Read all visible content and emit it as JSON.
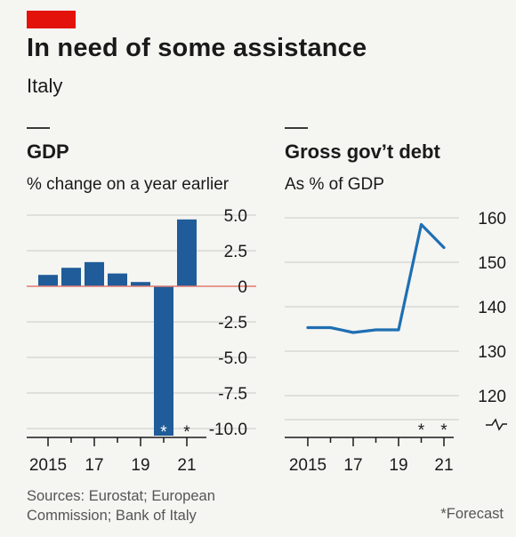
{
  "header": {
    "title": "In need of some assistance",
    "subtitle": "Italy",
    "accent_color": "#e3120b"
  },
  "footer": {
    "sources_line1": "Sources: Eurostat; European",
    "sources_line2": "Commission; Bank of Italy",
    "forecast_note": "*Forecast"
  },
  "chart_data": [
    {
      "type": "bar",
      "title": "GDP",
      "subtitle": "% change on a year earlier",
      "categories": [
        "2015",
        "2016",
        "2017",
        "2018",
        "2019",
        "2020",
        "2021"
      ],
      "values": [
        0.8,
        1.3,
        1.7,
        0.9,
        0.3,
        -10.5,
        4.7
      ],
      "forecast": [
        false,
        false,
        false,
        false,
        false,
        true,
        true
      ],
      "forecast_marker": "*",
      "ylim": [
        -10.0,
        5.0
      ],
      "yticks": [
        5.0,
        2.5,
        0,
        -2.5,
        -5.0,
        -7.5,
        -10.0
      ],
      "ytick_labels": [
        "5.0",
        "2.5",
        "0",
        "-2.5",
        "-5.0",
        "-7.5",
        "-10.0"
      ],
      "xtick_labels": [
        "2015",
        "17",
        "19",
        "21"
      ],
      "xtick_label_years": [
        "2015",
        "2017",
        "2019",
        "2021"
      ],
      "bar_color": "#1f5c99",
      "zero_line_color": "#e07a6f",
      "grid": true,
      "y_axis_position": "right"
    },
    {
      "type": "line",
      "title": "Gross gov’t debt",
      "subtitle": "As % of GDP",
      "x": [
        "2015",
        "2016",
        "2017",
        "2018",
        "2019",
        "2020",
        "2021"
      ],
      "values": [
        135.3,
        135.3,
        134.2,
        134.8,
        134.8,
        158.5,
        153.3
      ],
      "forecast": [
        false,
        false,
        false,
        false,
        false,
        true,
        true
      ],
      "forecast_marker": "*",
      "ylim": [
        113,
        160
      ],
      "yticks": [
        160,
        150,
        140,
        130,
        120
      ],
      "ytick_labels": [
        "160",
        "150",
        "140",
        "130",
        "120"
      ],
      "xtick_labels": [
        "2015",
        "17",
        "19",
        "21"
      ],
      "xtick_label_years": [
        "2015",
        "2017",
        "2019",
        "2021"
      ],
      "line_color": "#1f6fb2",
      "grid": true,
      "axis_break": true,
      "y_axis_position": "right"
    }
  ]
}
